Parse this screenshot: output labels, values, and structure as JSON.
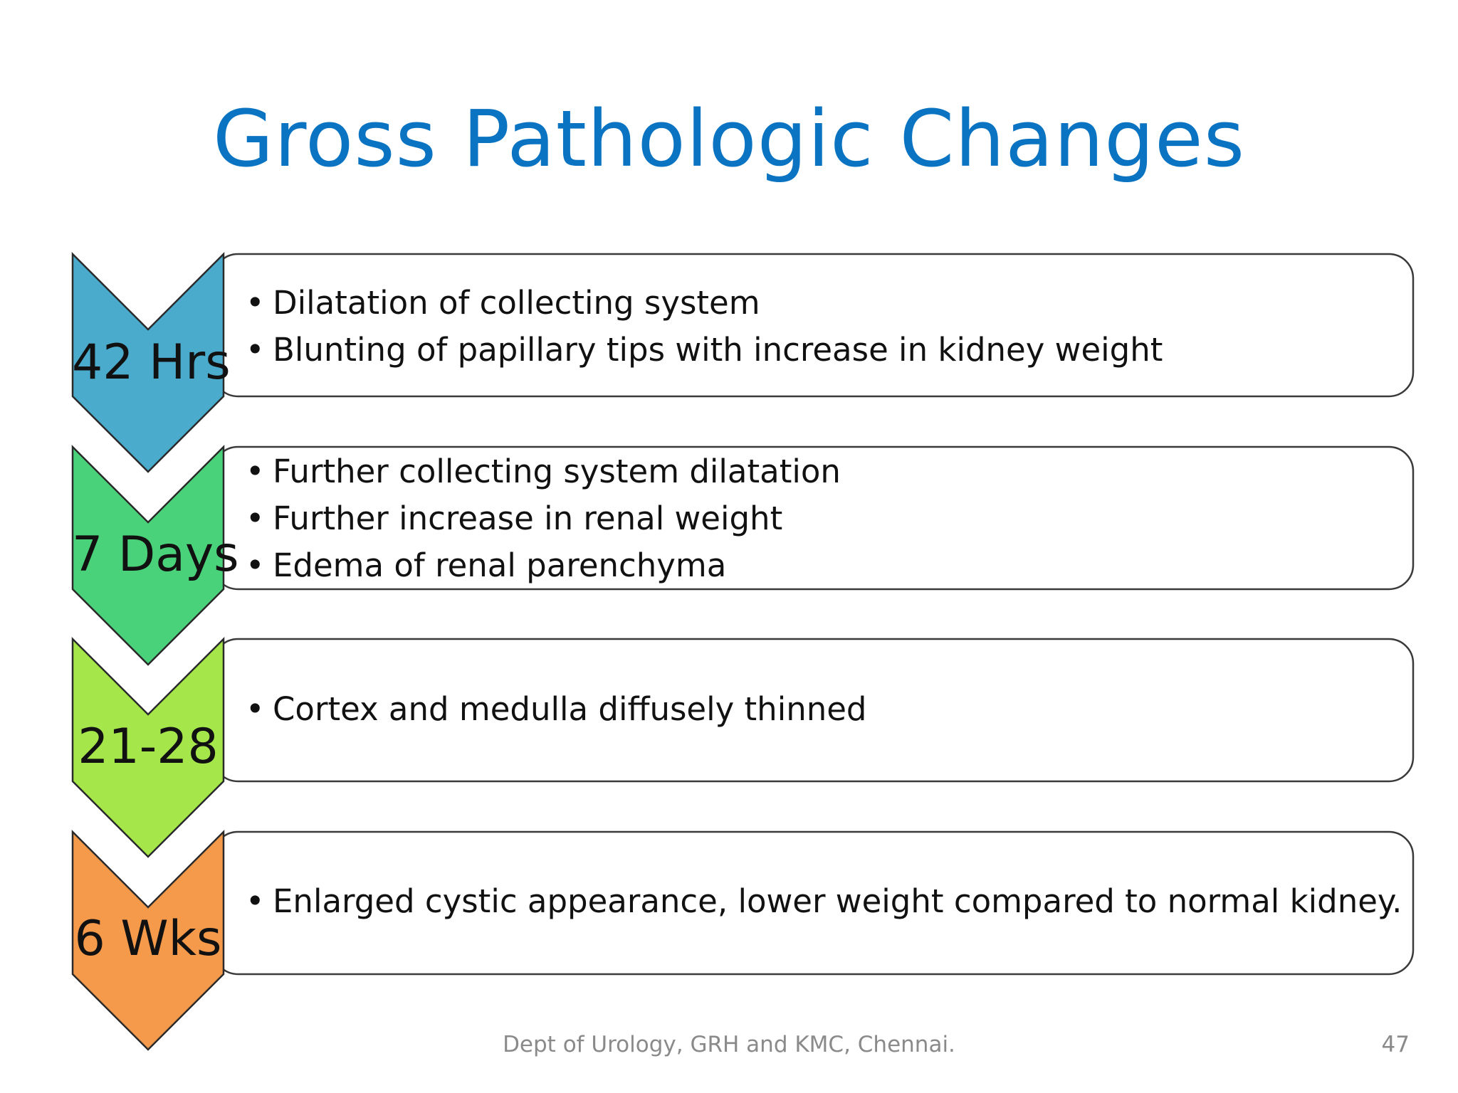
{
  "slide": {
    "title": "Gross Pathologic Changes",
    "footer": "Dept of Urology, GRH and KMC, Chennai.",
    "page_number": "47"
  },
  "stages": [
    {
      "label": "42 Hrs",
      "color": "#4aabcd",
      "items": [
        "Dilatation of collecting system",
        "Blunting of papillary tips with increase in kidney weight"
      ]
    },
    {
      "label": "7 Days",
      "color": "#49d27a",
      "items": [
        "Further collecting system dilatation",
        "Further increase in renal weight",
        "Edema of renal parenchyma"
      ]
    },
    {
      "label": "21-28",
      "color": "#a5e64b",
      "items": [
        "Cortex and medulla diffusely thinned"
      ]
    },
    {
      "label": "6 Wks",
      "color": "#f59a4b",
      "items": [
        "Enlarged cystic appearance, lower weight compared to normal kidney."
      ]
    }
  ]
}
